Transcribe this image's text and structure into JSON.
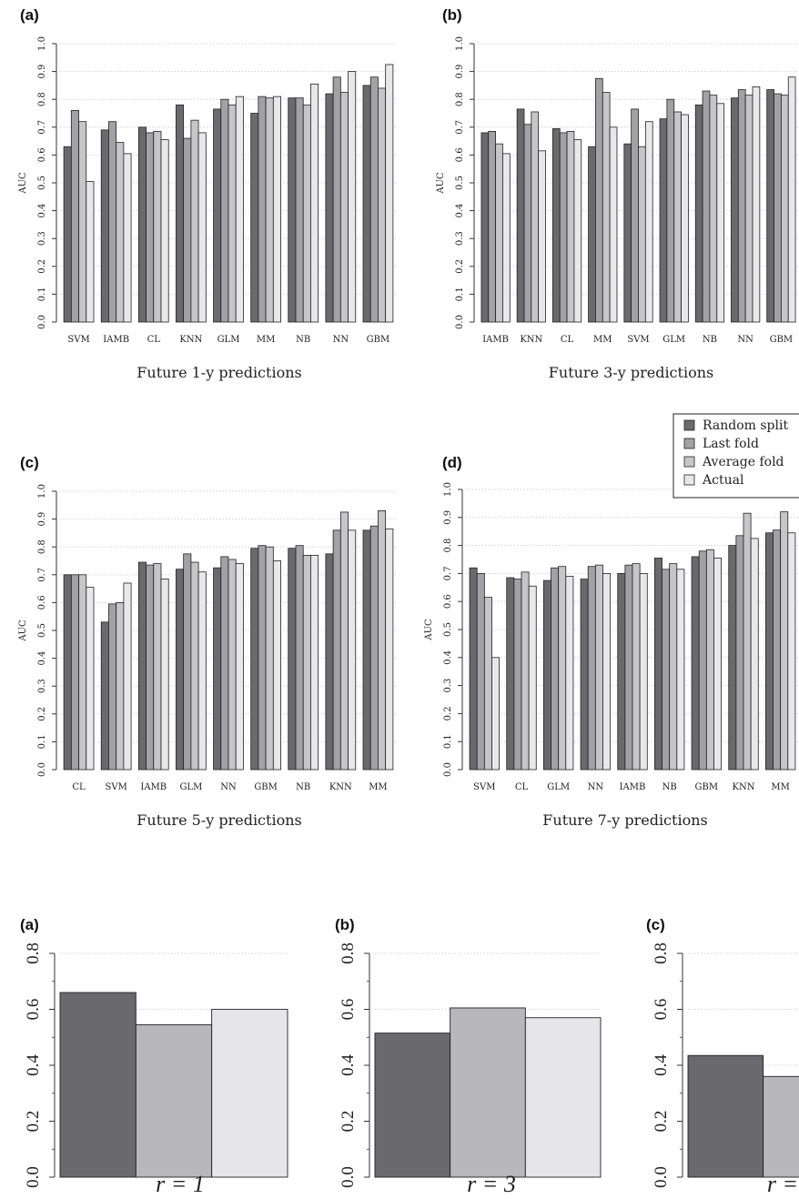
{
  "chart_data": [
    {
      "type": "bar",
      "panel_label": "(a)",
      "caption": "Future 1-y predictions",
      "ylabel": "AUC",
      "ylim": [
        0,
        1.0
      ],
      "yticks": [
        "0.0",
        "0.1",
        "0.2",
        "0.3",
        "0.4",
        "0.5",
        "0.6",
        "0.7",
        "0.8",
        "0.9",
        "1.0"
      ],
      "grid": true,
      "categories": [
        "SVM",
        "IAMB",
        "CL",
        "KNN",
        "GLM",
        "MM",
        "NB",
        "NN",
        "GBM"
      ],
      "series": [
        {
          "name": "Random split",
          "values": [
            0.63,
            0.69,
            0.7,
            0.78,
            0.765,
            0.75,
            0.805,
            0.82,
            0.85
          ]
        },
        {
          "name": "Last fold",
          "values": [
            0.76,
            0.72,
            0.68,
            0.66,
            0.8,
            0.81,
            0.805,
            0.88,
            0.88
          ]
        },
        {
          "name": "Average fold",
          "values": [
            0.72,
            0.645,
            0.685,
            0.725,
            0.78,
            0.805,
            0.78,
            0.825,
            0.84
          ]
        },
        {
          "name": "Actual",
          "values": [
            0.505,
            0.605,
            0.655,
            0.68,
            0.81,
            0.81,
            0.855,
            0.9,
            0.925
          ]
        }
      ]
    },
    {
      "type": "bar",
      "panel_label": "(b)",
      "caption": "Future 3-y predictions",
      "ylabel": "AUC",
      "ylim": [
        0,
        1.0
      ],
      "yticks": [
        "0.0",
        "0.1",
        "0.2",
        "0.3",
        "0.4",
        "0.5",
        "0.6",
        "0.7",
        "0.8",
        "0.9",
        "1.0"
      ],
      "grid": true,
      "categories": [
        "IAMB",
        "KNN",
        "CL",
        "MM",
        "SVM",
        "GLM",
        "NB",
        "NN",
        "GBM"
      ],
      "series": [
        {
          "name": "Random split",
          "values": [
            0.68,
            0.765,
            0.695,
            0.63,
            0.64,
            0.73,
            0.78,
            0.805,
            0.835
          ]
        },
        {
          "name": "Last fold",
          "values": [
            0.685,
            0.71,
            0.68,
            0.875,
            0.765,
            0.8,
            0.83,
            0.835,
            0.82
          ]
        },
        {
          "name": "Average fold",
          "values": [
            0.64,
            0.755,
            0.685,
            0.825,
            0.63,
            0.755,
            0.815,
            0.815,
            0.815
          ]
        },
        {
          "name": "Actual",
          "values": [
            0.605,
            0.615,
            0.655,
            0.7,
            0.72,
            0.745,
            0.785,
            0.845,
            0.88
          ]
        }
      ]
    },
    {
      "type": "bar",
      "panel_label": "(c)",
      "caption": "Future 5-y predictions",
      "ylabel": "AUC",
      "ylim": [
        0,
        1.0
      ],
      "yticks": [
        "0.0",
        "0.1",
        "0.2",
        "0.3",
        "0.4",
        "0.5",
        "0.6",
        "0.7",
        "0.8",
        "0.9",
        "1.0"
      ],
      "grid": true,
      "categories": [
        "CL",
        "SVM",
        "IAMB",
        "GLM",
        "NN",
        "GBM",
        "NB",
        "KNN",
        "MM"
      ],
      "series": [
        {
          "name": "Random split",
          "values": [
            0.7,
            0.53,
            0.745,
            0.72,
            0.725,
            0.795,
            0.795,
            0.775,
            0.86
          ]
        },
        {
          "name": "Last fold",
          "values": [
            0.7,
            0.595,
            0.735,
            0.775,
            0.765,
            0.805,
            0.805,
            0.86,
            0.875
          ]
        },
        {
          "name": "Average fold",
          "values": [
            0.7,
            0.6,
            0.74,
            0.745,
            0.755,
            0.8,
            0.77,
            0.925,
            0.93
          ]
        },
        {
          "name": "Actual",
          "values": [
            0.655,
            0.67,
            0.685,
            0.71,
            0.74,
            0.75,
            0.77,
            0.86,
            0.865
          ]
        }
      ]
    },
    {
      "type": "bar",
      "panel_label": "(d)",
      "caption": "Future 7-y predictions",
      "ylabel": "AUC",
      "ylim": [
        0,
        1.0
      ],
      "yticks": [
        "0.0",
        "0.1",
        "0.2",
        "0.3",
        "0.4",
        "0.5",
        "0.6",
        "0.7",
        "0.8",
        "0.9",
        "1.0"
      ],
      "grid": true,
      "legend_position": "top-right",
      "categories": [
        "SVM",
        "CL",
        "GLM",
        "NN",
        "IAMB",
        "NB",
        "GBM",
        "KNN",
        "MM"
      ],
      "series": [
        {
          "name": "Random split",
          "values": [
            0.72,
            0.685,
            0.675,
            0.68,
            0.7,
            0.755,
            0.76,
            0.8,
            0.845
          ]
        },
        {
          "name": "Last fold",
          "values": [
            0.7,
            0.68,
            0.72,
            0.725,
            0.73,
            0.715,
            0.78,
            0.835,
            0.855
          ]
        },
        {
          "name": "Average fold",
          "values": [
            0.615,
            0.705,
            0.725,
            0.73,
            0.735,
            0.735,
            0.785,
            0.915,
            0.92
          ]
        },
        {
          "name": "Actual",
          "values": [
            0.4,
            0.655,
            0.69,
            0.7,
            0.7,
            0.715,
            0.755,
            0.825,
            0.845
          ]
        }
      ]
    },
    {
      "type": "bar",
      "panel_label": "(a)",
      "caption": "r = 1",
      "ylim": [
        0,
        0.8
      ],
      "yticks": [
        "0.0",
        "0.2",
        "0.4",
        "0.6",
        "0.8"
      ],
      "grid": true,
      "values": [
        0.66,
        0.545,
        0.6
      ]
    },
    {
      "type": "bar",
      "panel_label": "(b)",
      "caption": "r = 3",
      "ylim": [
        0,
        0.8
      ],
      "yticks": [
        "0.0",
        "0.2",
        "0.4",
        "0.6",
        "0.8"
      ],
      "grid": true,
      "values": [
        0.515,
        0.605,
        0.57
      ]
    },
    {
      "type": "bar",
      "panel_label": "(c)",
      "caption": "r = ",
      "ylim": [
        0,
        0.8
      ],
      "yticks": [
        "0.0",
        "0.2",
        "0.4",
        "0.6",
        "0.8"
      ],
      "grid": true,
      "values": [
        0.435,
        0.36
      ]
    }
  ],
  "legend": {
    "entries": [
      "Random split",
      "Last fold",
      "Average fold",
      "Actual"
    ]
  },
  "colors": {
    "series": [
      "#6a6a6e",
      "#a2a2a6",
      "#c6c6c9",
      "#e8e8ea"
    ],
    "small_series": [
      "#6a6a6e",
      "#b8b8bb",
      "#e6e6e8"
    ],
    "grid": "#c8c8c8",
    "axis": "#333333"
  }
}
